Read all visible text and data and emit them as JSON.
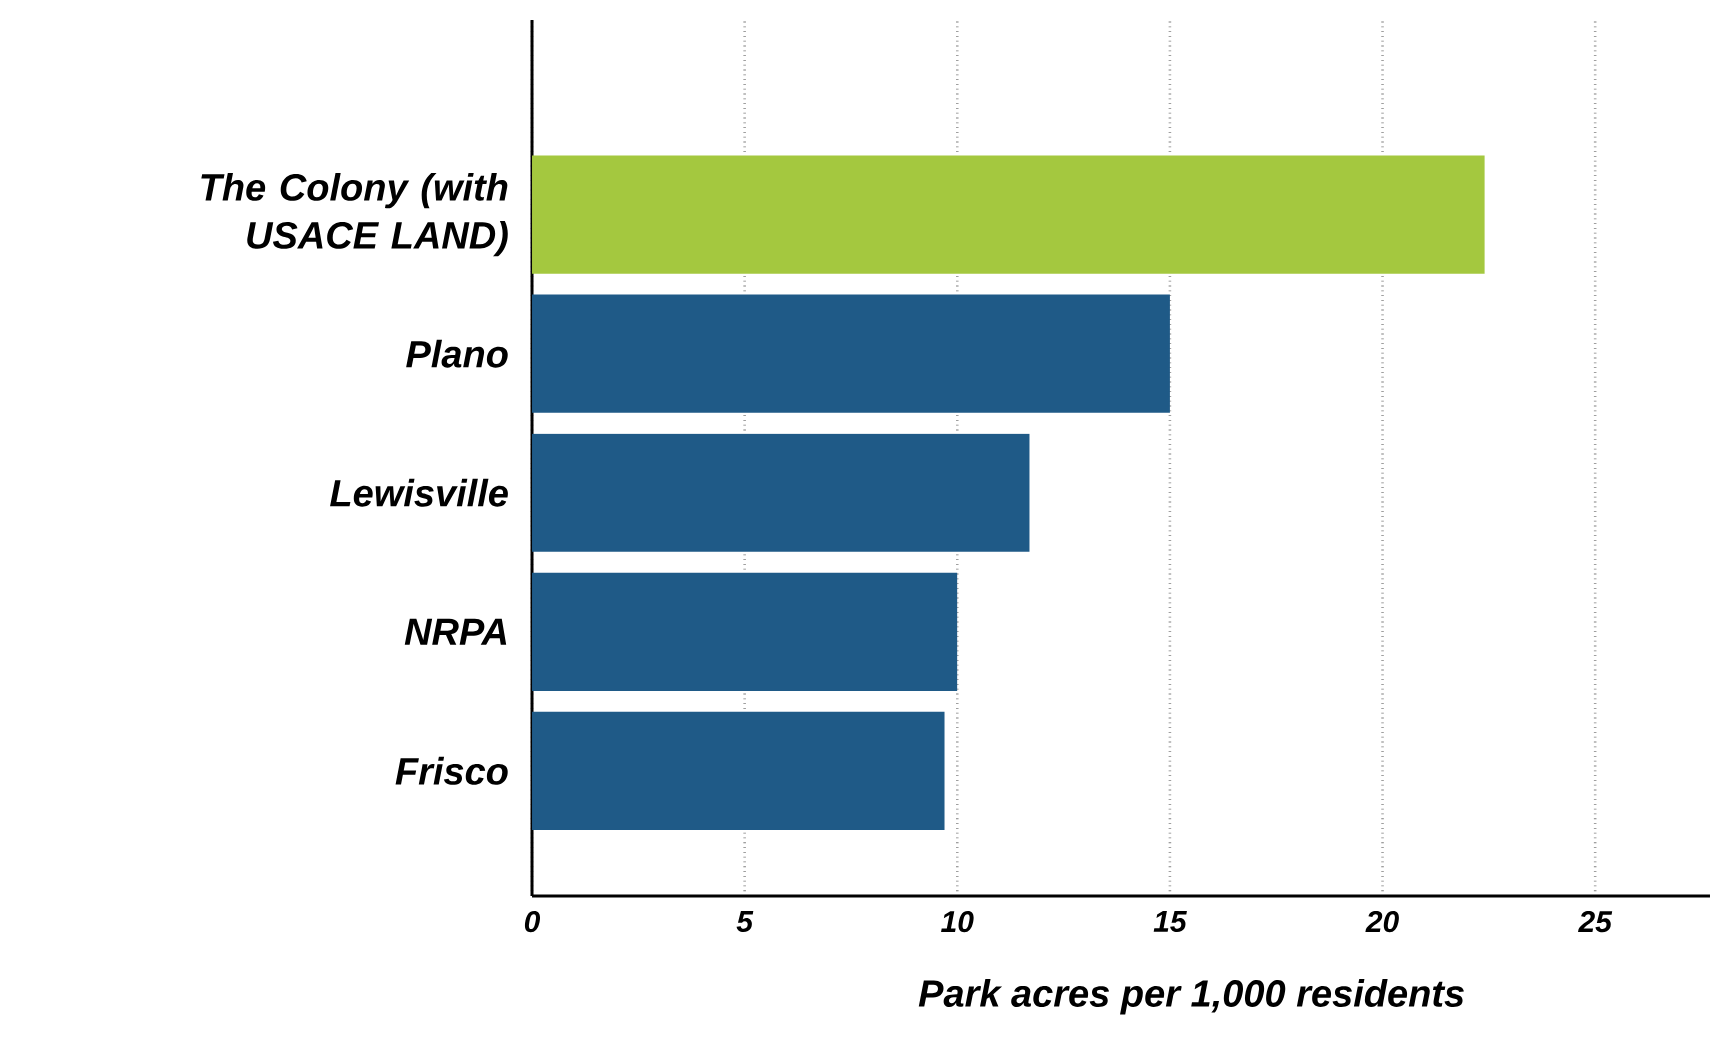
{
  "chart_data": {
    "type": "bar",
    "orientation": "horizontal",
    "xlabel": "Park acres per 1,000 residents",
    "categories": [
      "The Colony (with USACE LAND)",
      "Plano",
      "Lewisville",
      "NRPA",
      "Frisco"
    ],
    "values": [
      22.4,
      15.0,
      11.7,
      10.0,
      9.7
    ],
    "colors": [
      "#a4c83f",
      "#1f5a87",
      "#1f5a87",
      "#1f5a87",
      "#1f5a87"
    ],
    "xlim": [
      0,
      27.7
    ],
    "xticks": [
      0,
      5,
      10,
      15,
      20,
      25
    ],
    "grid": "x"
  }
}
